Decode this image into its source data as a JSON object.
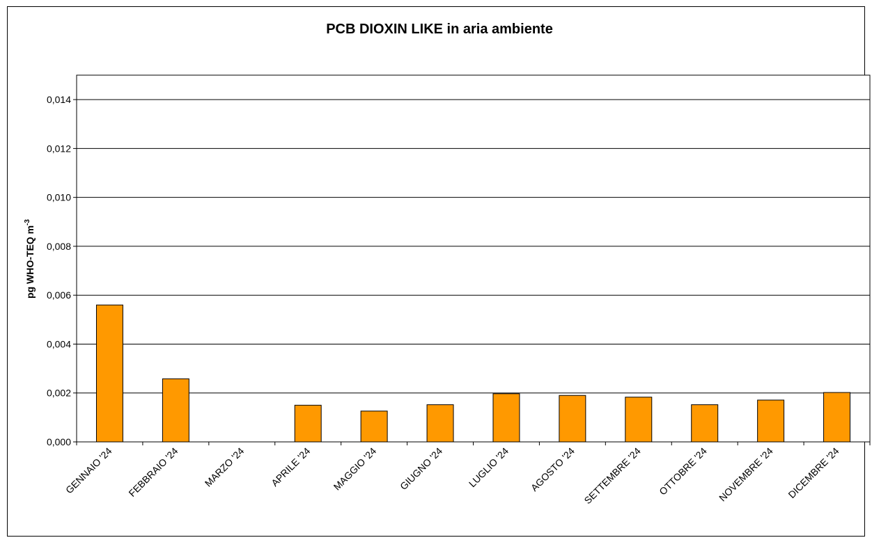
{
  "chart_data": {
    "type": "bar",
    "title": "PCB DIOXIN LIKE in aria ambiente",
    "xlabel": "",
    "ylabel": "pg WHO-TEQ m",
    "ylabel_superscript": "-3",
    "categories": [
      "GENNAIO '24",
      "FEBBRAIO '24",
      "MARZO '24",
      "APRILE '24",
      "MAGGIO '24",
      "GIUGNO '24",
      "LUGLIO '24",
      "AGOSTO '24",
      "SETTEMBRE '24",
      "OTTOBRE '24",
      "NOVEMBRE '24",
      "DICEMBRE '24"
    ],
    "values": [
      0.0056,
      0.00258,
      null,
      0.0015,
      0.00126,
      0.00152,
      0.00197,
      0.0019,
      0.00183,
      0.00152,
      0.00171,
      0.00202
    ],
    "ylim": [
      0,
      0.015
    ],
    "yticks": [
      "0,000",
      "0,002",
      "0,004",
      "0,006",
      "0,008",
      "0,010",
      "0,012",
      "0,014"
    ],
    "grid": true,
    "legend": "none",
    "bar_color": "#FF9900",
    "bar_stroke": "#000000"
  }
}
